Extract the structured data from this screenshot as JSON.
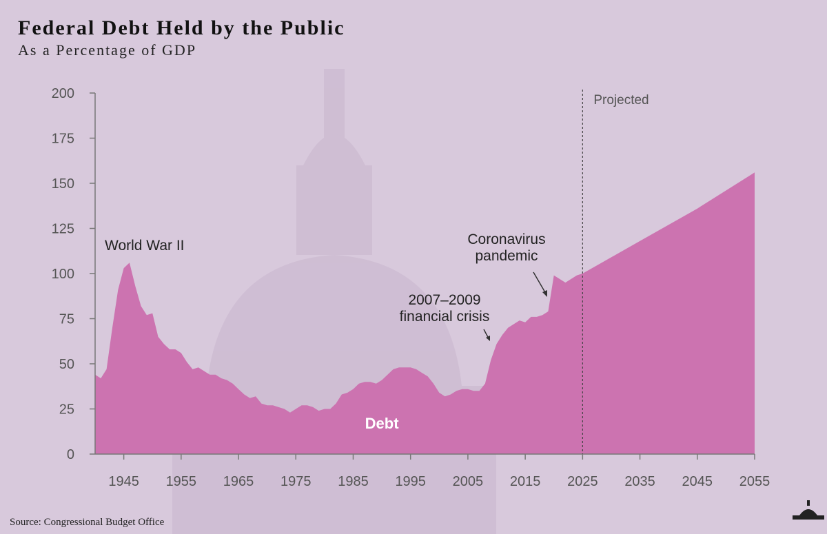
{
  "chart_data": {
    "type": "area",
    "title": "Federal Debt Held by the Public",
    "subtitle": "As a Percentage of GDP",
    "source": "Source: Congressional Budget Office",
    "x": [
      1940,
      1941,
      1942,
      1943,
      1944,
      1945,
      1946,
      1947,
      1948,
      1949,
      1950,
      1951,
      1952,
      1953,
      1954,
      1955,
      1956,
      1957,
      1958,
      1959,
      1960,
      1961,
      1962,
      1963,
      1964,
      1965,
      1966,
      1967,
      1968,
      1969,
      1970,
      1971,
      1972,
      1973,
      1974,
      1975,
      1976,
      1977,
      1978,
      1979,
      1980,
      1981,
      1982,
      1983,
      1984,
      1985,
      1986,
      1987,
      1988,
      1989,
      1990,
      1991,
      1992,
      1993,
      1994,
      1995,
      1996,
      1997,
      1998,
      1999,
      2000,
      2001,
      2002,
      2003,
      2004,
      2005,
      2006,
      2007,
      2008,
      2009,
      2010,
      2011,
      2012,
      2013,
      2014,
      2015,
      2016,
      2017,
      2018,
      2019,
      2020,
      2021,
      2022,
      2023,
      2024,
      2025,
      2035,
      2045,
      2055
    ],
    "series": [
      {
        "name": "Debt",
        "color": "#cc73b0",
        "values": [
          44,
          42,
          47,
          70,
          91,
          103,
          106,
          93,
          82,
          77,
          78,
          65,
          61,
          58,
          58,
          56,
          51,
          47,
          48,
          46,
          44,
          44,
          42,
          41,
          39,
          36,
          33,
          31,
          32,
          28,
          27,
          27,
          26,
          25,
          23,
          25,
          27,
          27,
          26,
          24,
          25,
          25,
          28,
          33,
          34,
          36,
          39,
          40,
          40,
          39,
          41,
          44,
          47,
          48,
          48,
          48,
          47,
          45,
          43,
          39,
          34,
          32,
          33,
          35,
          36,
          36,
          35,
          35,
          39,
          52,
          61,
          66,
          70,
          72,
          74,
          73,
          76,
          76,
          77,
          79,
          99,
          97,
          95,
          97,
          99,
          100,
          118,
          136,
          156
        ]
      }
    ],
    "xlim": [
      1940,
      2055
    ],
    "ylim": [
      0,
      200
    ],
    "xticks": [
      1945,
      1955,
      1965,
      1975,
      1985,
      1995,
      2005,
      2015,
      2025,
      2035,
      2045,
      2055
    ],
    "yticks": [
      0,
      25,
      50,
      75,
      100,
      125,
      150,
      175,
      200
    ],
    "projected_from": 2025,
    "projected_label": "Projected",
    "annotations": [
      [
        "World War II"
      ],
      [
        "2007–2009",
        "financial crisis"
      ],
      [
        "Coronavirus",
        "pandemic"
      ]
    ]
  }
}
